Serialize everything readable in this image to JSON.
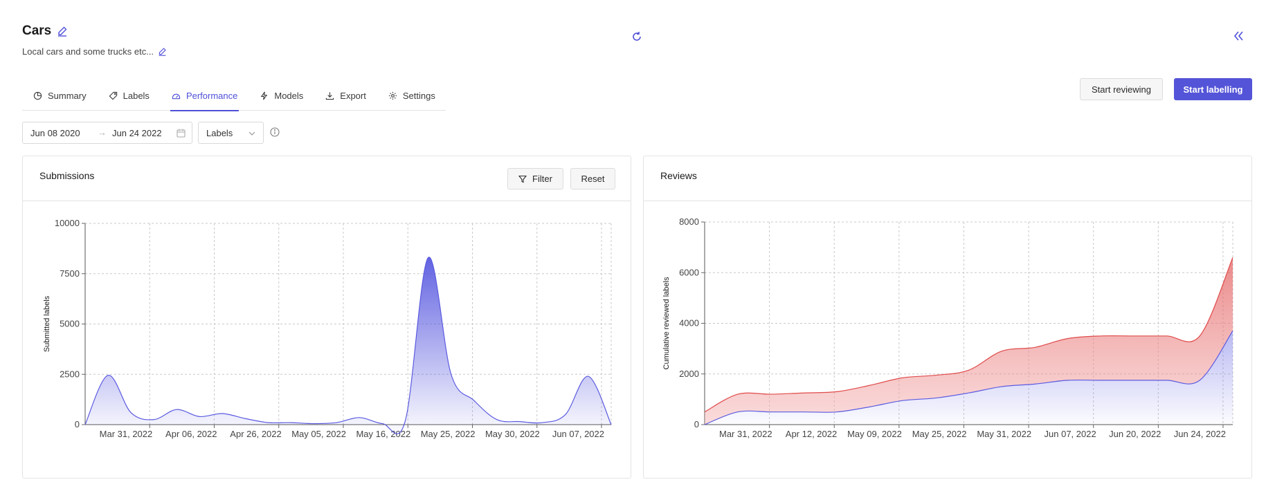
{
  "header": {
    "title": "Cars",
    "description": "Local cars and some trucks etc..."
  },
  "tabs": [
    {
      "label": "Summary",
      "icon": "pie-chart-icon",
      "active": false
    },
    {
      "label": "Labels",
      "icon": "tag-icon",
      "active": false
    },
    {
      "label": "Performance",
      "icon": "dashboard-icon",
      "active": true
    },
    {
      "label": "Models",
      "icon": "lightning-icon",
      "active": false
    },
    {
      "label": "Export",
      "icon": "download-icon",
      "active": false
    },
    {
      "label": "Settings",
      "icon": "gear-icon",
      "active": false
    }
  ],
  "actions": {
    "start_reviewing": "Start reviewing",
    "start_labelling": "Start labelling"
  },
  "filters": {
    "date_start": "Jun 08 2020",
    "date_end": "Jun 24 2022",
    "arrow": "→",
    "select_value": "Labels"
  },
  "colors": {
    "accent": "#5454d8",
    "series_blue": "#5a5ae0",
    "series_red": "#e04a4a"
  },
  "submissions": {
    "title": "Submissions",
    "filter_label": "Filter",
    "reset_label": "Reset"
  },
  "reviews": {
    "title": "Reviews"
  },
  "chart_data": [
    {
      "type": "area",
      "title": "Submissions",
      "xlabel": "",
      "ylabel": "Submitted labels",
      "ylim": [
        0,
        10000
      ],
      "yticks": [
        0,
        2500,
        5000,
        7500,
        10000
      ],
      "xticks": [
        "Mar 31, 2022",
        "Apr 06, 2022",
        "Apr 26, 2022",
        "May 05, 2022",
        "May 16, 2022",
        "May 25, 2022",
        "May 30, 2022",
        "Jun 07, 2022"
      ],
      "grid": true,
      "series": [
        {
          "values": [
            0,
            2450,
            600,
            250,
            750,
            400,
            550,
            300,
            100,
            100,
            50,
            100,
            350,
            50,
            200,
            8300,
            2500,
            1200,
            250,
            150,
            100,
            500,
            2400,
            0
          ]
        }
      ]
    },
    {
      "type": "area",
      "title": "Reviews",
      "xlabel": "",
      "ylabel": "Cumulative reviewed labels",
      "ylim": [
        0,
        8000
      ],
      "yticks": [
        0,
        2000,
        4000,
        6000,
        8000
      ],
      "xticks": [
        "Mar 31, 2022",
        "Apr 12, 2022",
        "May 09, 2022",
        "May 25, 2022",
        "May 31, 2022",
        "Jun 07, 2022",
        "Jun 20, 2022",
        "Jun 24, 2022"
      ],
      "grid": true,
      "stacked": true,
      "series": [
        {
          "color": "blue",
          "values": [
            0,
            500,
            500,
            500,
            500,
            700,
            950,
            1050,
            1250,
            1500,
            1600,
            1750,
            1750,
            1750,
            1750,
            1750,
            3700
          ]
        },
        {
          "color": "red",
          "values": [
            500,
            700,
            700,
            750,
            800,
            850,
            900,
            900,
            900,
            1400,
            1450,
            1650,
            1750,
            1750,
            1750,
            1750,
            2900
          ]
        }
      ]
    }
  ]
}
